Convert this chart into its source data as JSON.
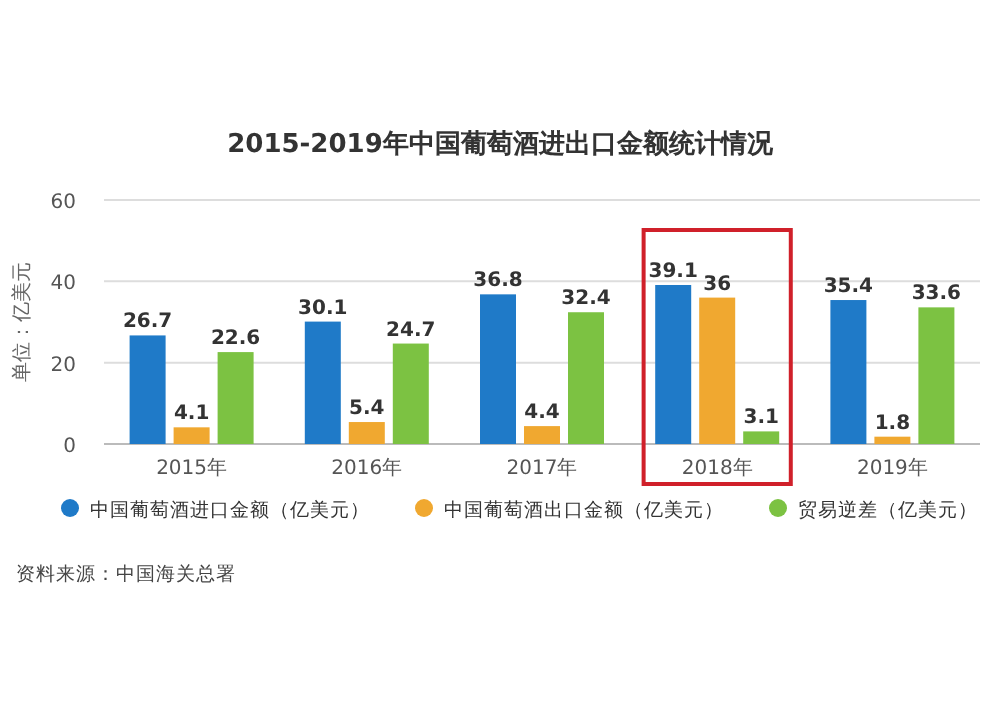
{
  "chart_data": {
    "type": "bar",
    "title": "2015-2019年中国葡萄酒进出口金额统计情况",
    "ylabel": "单位：亿美元",
    "categories": [
      "2015年",
      "2016年",
      "2017年",
      "2018年",
      "2019年"
    ],
    "series": [
      {
        "name": "中国葡萄酒进口金额（亿美元）",
        "color": "#1f7ac8",
        "values": [
          26.7,
          30.1,
          36.8,
          39.1,
          35.4
        ]
      },
      {
        "name": "中国葡萄酒出口金额（亿美元）",
        "color": "#f0a830",
        "values": [
          4.1,
          5.4,
          4.4,
          36,
          1.8
        ]
      },
      {
        "name": "贸易逆差（亿美元）",
        "color": "#7cc242",
        "values": [
          22.6,
          24.7,
          32.4,
          3.1,
          33.6
        ]
      }
    ],
    "ylim": [
      0,
      60
    ],
    "yticks": [
      0,
      20,
      40,
      60
    ],
    "grid": "y",
    "legend": "bottom",
    "marker": "circle",
    "data_labels": true,
    "annotations": [
      "资料来源：中国海关总署"
    ]
  }
}
